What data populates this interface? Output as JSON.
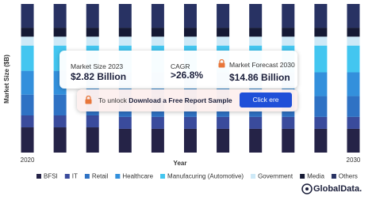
{
  "chart_data": {
    "type": "stacked-bar",
    "y_label": "Market Size ($B)",
    "x_label": "Year",
    "categories": [
      "2020",
      null,
      null,
      null,
      null,
      null,
      null,
      null,
      null,
      null,
      "2030"
    ],
    "ylim": [
      0,
      100
    ],
    "series": [
      {
        "name": "BFSI",
        "color": "#252347",
        "values": [
          17,
          17,
          17,
          16,
          16,
          16,
          16,
          16,
          16,
          16,
          16
        ]
      },
      {
        "name": "IT",
        "color": "#3a4b9c",
        "values": [
          8,
          8,
          8,
          8,
          8,
          8,
          8,
          8,
          8,
          8,
          8
        ]
      },
      {
        "name": "Retail",
        "color": "#2f72c4",
        "values": [
          14,
          14,
          14,
          14,
          14,
          14,
          14,
          14,
          14,
          14,
          14
        ]
      },
      {
        "name": "Healthcare",
        "color": "#3390dc",
        "values": [
          16,
          16,
          16,
          16,
          16,
          16,
          16,
          16,
          16,
          16,
          16
        ]
      },
      {
        "name": "Manufacuring (Automotive)",
        "color": "#43c6f0",
        "values": [
          17,
          17,
          17,
          18,
          18,
          18,
          18,
          18,
          18,
          18,
          18
        ]
      },
      {
        "name": "Government",
        "color": "#cde9f7",
        "values": [
          6,
          6,
          6,
          6,
          6,
          6,
          6,
          6,
          6,
          6,
          6
        ]
      },
      {
        "name": "Media",
        "color": "#151934",
        "values": [
          6,
          6,
          6,
          6,
          6,
          6,
          6,
          6,
          6,
          6,
          6
        ]
      },
      {
        "name": "Others",
        "color": "#283263",
        "values": [
          16,
          16,
          16,
          16,
          16,
          16,
          16,
          16,
          16,
          16,
          16
        ]
      }
    ]
  },
  "overlay": {
    "market_size_label": "Market Size 2023",
    "market_size_value": "$2.82 Billion",
    "cagr_label": "CAGR",
    "cagr_value": ">26.8%",
    "forecast_label": "Market Forecast 2030",
    "forecast_value": "$14.86 Billion",
    "unlock_text": "To unlock",
    "unlock_bold": "Download a Free Report Sample",
    "button": "Click ere",
    "logo": "GlobalData."
  }
}
